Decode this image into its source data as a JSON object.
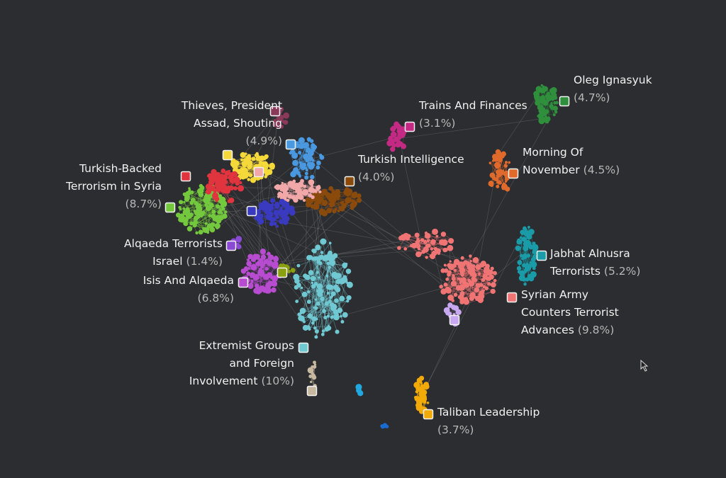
{
  "clusters": [
    {
      "name_lines": [
        "Oleg Ignasyuk"
      ],
      "share": "(4.7%)",
      "color": "#2f8f3c"
    },
    {
      "name_lines": [
        "Trains And Finances"
      ],
      "share": "(3.1%)",
      "color": "#c42a84"
    },
    {
      "name_lines": [
        "Thieves, President",
        "Assad, Shouting"
      ],
      "share": "(4.9%)",
      "color": "#8a3a58"
    },
    {
      "name_lines": [
        "Turkish Intelligence"
      ],
      "share": "(4.0%)",
      "color": "#8a4a0c"
    },
    {
      "name_lines": [
        "Morning Of",
        "November"
      ],
      "share": "(4.5%)",
      "color": "#e06a2c"
    },
    {
      "name_lines": [
        "Turkish-Backed",
        "Terrorism in Syria"
      ],
      "share": "(8.7%)",
      "color": "#74c83e"
    },
    {
      "name_lines": [
        "Jabhat Alnusra",
        "Terrorists"
      ],
      "share": "(5.2%)",
      "color": "#1a9ca8"
    },
    {
      "name_lines": [
        "Alqaeda Terrorists",
        "Israel"
      ],
      "share": "(1.4%)",
      "color": "#8a4ad4"
    },
    {
      "name_lines": [
        "Isis And Alqaeda"
      ],
      "share": "(6.8%)",
      "color": "#b84cd0"
    },
    {
      "name_lines": [
        "Syrian Army",
        "Counters Terrorist",
        "Advances"
      ],
      "share": "(9.8%)",
      "color": "#f07474"
    },
    {
      "name_lines": [
        "Extremist Groups",
        "and Foreign",
        "Involvement"
      ],
      "share": "(10%)",
      "color": "#70c8d2"
    },
    {
      "name_lines": [
        "Taliban Leadership"
      ],
      "share": "(3.7%)",
      "color": "#f2aa08"
    }
  ]
}
